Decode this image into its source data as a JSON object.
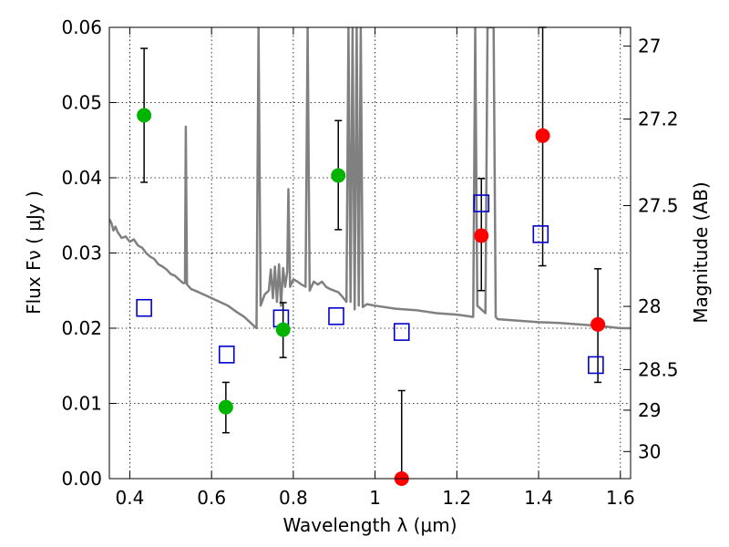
{
  "chart_data": {
    "type": "scatter",
    "xlabel": "Wavelength  λ (μm)",
    "ylabel": "Flux  Fν  ( μJy )",
    "ylabel_right": "Magnitude (AB)",
    "xlim": [
      0.35,
      1.625
    ],
    "ylim": [
      0,
      0.06
    ],
    "grid": true,
    "x_ticks": [
      0.4,
      0.6,
      0.8,
      1.0,
      1.2,
      1.4,
      1.6
    ],
    "x_tick_labels": [
      "0.4",
      "0.6",
      "0.8",
      "1",
      "1.2",
      "1.4",
      "1.6"
    ],
    "y_ticks": [
      0,
      0.01,
      0.02,
      0.03,
      0.04,
      0.05,
      0.06
    ],
    "y_tick_labels": [
      "0.00",
      "0.01",
      "0.02",
      "0.03",
      "0.04",
      "0.05",
      "0.06"
    ],
    "right_axis_ticks": [
      {
        "label": "27",
        "flux": 0.0575
      },
      {
        "label": "27.2",
        "flux": 0.0478
      },
      {
        "label": "27.5",
        "flux": 0.0363
      },
      {
        "label": "28",
        "flux": 0.0229
      },
      {
        "label": "28.5",
        "flux": 0.0145
      },
      {
        "label": "29",
        "flux": 0.0091
      },
      {
        "label": "30",
        "flux": 0.0036
      }
    ],
    "colors": {
      "green": "#00b400",
      "red": "#ff0000",
      "model": "#808080",
      "square": "#0000cc",
      "errorbar": "#000000"
    },
    "series": [
      {
        "kind": "errorbar-points",
        "color": "green",
        "points": [
          {
            "x": 0.435,
            "y": 0.0483,
            "ylo": 0.0394,
            "yhi": 0.0572
          },
          {
            "x": 0.635,
            "y": 0.0095,
            "ylo": 0.0061,
            "yhi": 0.0128
          },
          {
            "x": 0.775,
            "y": 0.0198,
            "ylo": 0.0161,
            "yhi": 0.0234
          },
          {
            "x": 0.91,
            "y": 0.0403,
            "ylo": 0.0331,
            "yhi": 0.0476
          }
        ]
      },
      {
        "kind": "errorbar-points",
        "color": "red",
        "points": [
          {
            "x": 1.065,
            "y": 0.0,
            "ylo": 0.0,
            "yhi": 0.0117
          },
          {
            "x": 1.26,
            "y": 0.0323,
            "ylo": 0.025,
            "yhi": 0.0399
          },
          {
            "x": 1.41,
            "y": 0.0456,
            "ylo": 0.0283,
            "yhi": 0.06
          },
          {
            "x": 1.545,
            "y": 0.0205,
            "ylo": 0.0128,
            "yhi": 0.0279
          }
        ]
      },
      {
        "kind": "open-squares",
        "color": "square",
        "points": [
          {
            "x": 0.435,
            "y": 0.0227
          },
          {
            "x": 0.637,
            "y": 0.0165
          },
          {
            "x": 0.77,
            "y": 0.0213
          },
          {
            "x": 0.905,
            "y": 0.0216
          },
          {
            "x": 1.065,
            "y": 0.0195
          },
          {
            "x": 1.26,
            "y": 0.0366
          },
          {
            "x": 1.405,
            "y": 0.0325
          },
          {
            "x": 1.54,
            "y": 0.0151
          }
        ]
      },
      {
        "kind": "model-line",
        "color": "model",
        "points": [
          [
            0.35,
            0.0345
          ],
          [
            0.355,
            0.034
          ],
          [
            0.36,
            0.033
          ],
          [
            0.365,
            0.0335
          ],
          [
            0.37,
            0.0328
          ],
          [
            0.38,
            0.032
          ],
          [
            0.39,
            0.0322
          ],
          [
            0.4,
            0.0315
          ],
          [
            0.41,
            0.0318
          ],
          [
            0.42,
            0.031
          ],
          [
            0.43,
            0.0307
          ],
          [
            0.44,
            0.03
          ],
          [
            0.45,
            0.0295
          ],
          [
            0.46,
            0.0292
          ],
          [
            0.47,
            0.0285
          ],
          [
            0.48,
            0.0282
          ],
          [
            0.49,
            0.0278
          ],
          [
            0.5,
            0.0272
          ],
          [
            0.51,
            0.027
          ],
          [
            0.52,
            0.0265
          ],
          [
            0.53,
            0.026
          ],
          [
            0.535,
            0.026
          ],
          [
            0.537,
            0.0468
          ],
          [
            0.54,
            0.0258
          ],
          [
            0.55,
            0.0252
          ],
          [
            0.56,
            0.025
          ],
          [
            0.58,
            0.0245
          ],
          [
            0.6,
            0.024
          ],
          [
            0.62,
            0.0235
          ],
          [
            0.64,
            0.023
          ],
          [
            0.66,
            0.0222
          ],
          [
            0.68,
            0.0215
          ],
          [
            0.7,
            0.0205
          ],
          [
            0.71,
            0.02
          ],
          [
            0.715,
            0.06
          ],
          [
            0.72,
            0.023
          ],
          [
            0.73,
            0.0245
          ],
          [
            0.74,
            0.025
          ],
          [
            0.745,
            0.0278
          ],
          [
            0.75,
            0.024
          ],
          [
            0.755,
            0.0282
          ],
          [
            0.76,
            0.0235
          ],
          [
            0.765,
            0.0285
          ],
          [
            0.77,
            0.023
          ],
          [
            0.775,
            0.028
          ],
          [
            0.78,
            0.0255
          ],
          [
            0.785,
            0.0275
          ],
          [
            0.788,
            0.0385
          ],
          [
            0.792,
            0.0255
          ],
          [
            0.8,
            0.0265
          ],
          [
            0.81,
            0.0262
          ],
          [
            0.82,
            0.0258
          ],
          [
            0.83,
            0.0255
          ],
          [
            0.835,
            0.06
          ],
          [
            0.84,
            0.025
          ],
          [
            0.85,
            0.0262
          ],
          [
            0.86,
            0.0258
          ],
          [
            0.87,
            0.0262
          ],
          [
            0.88,
            0.0255
          ],
          [
            0.89,
            0.0252
          ],
          [
            0.9,
            0.025
          ],
          [
            0.91,
            0.0248
          ],
          [
            0.92,
            0.0242
          ],
          [
            0.93,
            0.0235
          ],
          [
            0.935,
            0.06
          ],
          [
            0.94,
            0.0235
          ],
          [
            0.945,
            0.06
          ],
          [
            0.95,
            0.0225
          ],
          [
            0.955,
            0.06
          ],
          [
            0.96,
            0.023
          ],
          [
            0.965,
            0.06
          ],
          [
            0.97,
            0.0228
          ],
          [
            0.98,
            0.0232
          ],
          [
            1.0,
            0.023
          ],
          [
            1.05,
            0.0226
          ],
          [
            1.1,
            0.0224
          ],
          [
            1.15,
            0.022
          ],
          [
            1.2,
            0.0218
          ],
          [
            1.24,
            0.0215
          ],
          [
            1.245,
            0.06
          ],
          [
            1.25,
            0.023
          ],
          [
            1.26,
            0.0225
          ],
          [
            1.27,
            0.022
          ],
          [
            1.275,
            0.06
          ],
          [
            1.28,
            0.06
          ],
          [
            1.285,
            0.06
          ],
          [
            1.29,
            0.06
          ],
          [
            1.295,
            0.0215
          ],
          [
            1.3,
            0.0212
          ],
          [
            1.35,
            0.021
          ],
          [
            1.4,
            0.0208
          ],
          [
            1.45,
            0.0207
          ],
          [
            1.5,
            0.0205
          ],
          [
            1.55,
            0.0203
          ],
          [
            1.6,
            0.02
          ],
          [
            1.625,
            0.02
          ]
        ]
      }
    ]
  }
}
